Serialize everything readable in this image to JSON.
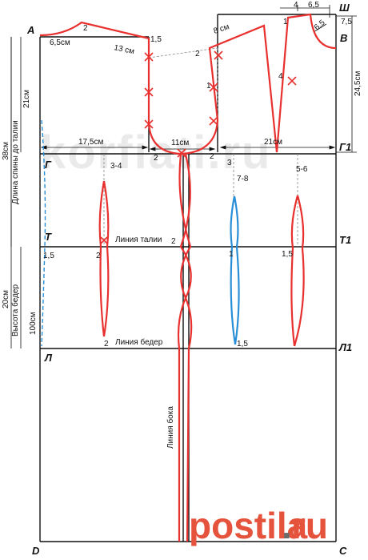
{
  "points": {
    "A": "А",
    "V": "В",
    "Sh": "Ш",
    "G": "Г",
    "G1": "Г1",
    "T": "Т",
    "T1": "Т1",
    "L": "Л",
    "L1": "Л1",
    "D": "D",
    "C": "С"
  },
  "measurements": {
    "neck_6_5": "6,5см",
    "shoulder_13": "13 см",
    "armhole_1_5": "1,5",
    "shoulder_8": "8 см",
    "top_4": "4",
    "top_6_5": "6,5",
    "side_7_5": "7,5",
    "side_6_5": "6,5",
    "back_width": "17,5см",
    "armhole_width": "11см",
    "front_width": "21см",
    "front_height": "24,5см",
    "back_21": "21см",
    "back_38": "38см",
    "hip_20": "20см",
    "length_100": "100см"
  },
  "labels": {
    "back_length_to_waist": "Длина спины до талии",
    "hip_height": "Высота бедер",
    "waist_line": "Линия талии",
    "hip_line": "Линия  бедер",
    "side_line": "Линия бока"
  },
  "small_marks": {
    "m1": "1",
    "m2": "2",
    "m4": "4",
    "m1_5": "1,5",
    "dart_3_4": "3-4",
    "dart_7_8": "7-8",
    "dart_5_6": "5-6",
    "m3": "3",
    "m2_2": "2",
    "m1_1": "1",
    "m1_5b": "1,5"
  },
  "watermark": "korfiati.ru",
  "logo": {
    "text_left": "postila",
    "text_dot": ".",
    "text_right": "ru"
  },
  "colors": {
    "pattern_line": "#e8312f",
    "dart_blue": "#2a8fd6",
    "frame": "#111111"
  }
}
